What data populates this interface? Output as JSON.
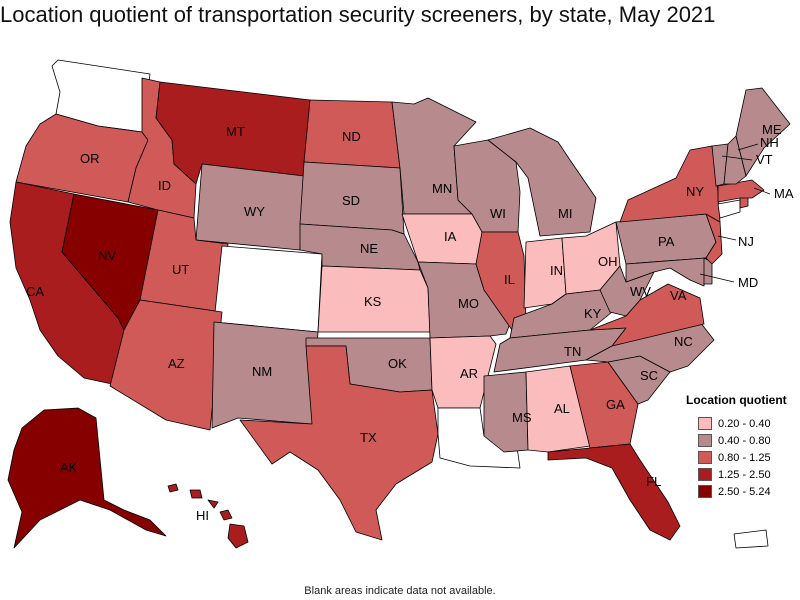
{
  "title": "Location quotient of transportation security screeners, by state, May 2021",
  "legend": {
    "title": "Location quotient",
    "items": [
      {
        "label": "0.20 - 0.40",
        "color": "#fbbcbd"
      },
      {
        "label": "0.40 - 0.80",
        "color": "#b78b8d"
      },
      {
        "label": "0.80 - 1.25",
        "color": "#cf5a58"
      },
      {
        "label": "1.25 - 2.50",
        "color": "#aa1d1f"
      },
      {
        "label": "2.50 - 5.24",
        "color": "#870000"
      }
    ]
  },
  "footnote": "Blank areas indicate data not available.",
  "states": {
    "WA": {
      "label": "",
      "class": "none"
    },
    "OR": {
      "label": "OR",
      "class": 2
    },
    "CA": {
      "label": "CA",
      "class": 3
    },
    "NV": {
      "label": "NV",
      "class": 4
    },
    "ID": {
      "label": "ID",
      "class": 2
    },
    "MT": {
      "label": "MT",
      "class": 3
    },
    "WY": {
      "label": "WY",
      "class": 1
    },
    "UT": {
      "label": "UT",
      "class": 2
    },
    "CO": {
      "label": "",
      "class": "none"
    },
    "AZ": {
      "label": "AZ",
      "class": 2
    },
    "NM": {
      "label": "NM",
      "class": 1
    },
    "ND": {
      "label": "ND",
      "class": 2
    },
    "SD": {
      "label": "SD",
      "class": 1
    },
    "NE": {
      "label": "NE",
      "class": 1
    },
    "KS": {
      "label": "KS",
      "class": 0
    },
    "OK": {
      "label": "OK",
      "class": 1
    },
    "TX": {
      "label": "TX",
      "class": 2
    },
    "MN": {
      "label": "MN",
      "class": 1
    },
    "IA": {
      "label": "IA",
      "class": 0
    },
    "MO": {
      "label": "MO",
      "class": 1
    },
    "AR": {
      "label": "AR",
      "class": 0
    },
    "LA": {
      "label": "",
      "class": "none"
    },
    "WI": {
      "label": "WI",
      "class": 1
    },
    "IL": {
      "label": "IL",
      "class": 2
    },
    "MI": {
      "label": "MI",
      "class": 1
    },
    "IN": {
      "label": "IN",
      "class": 0
    },
    "OH": {
      "label": "OH",
      "class": 0
    },
    "KY": {
      "label": "KY",
      "class": 1
    },
    "TN": {
      "label": "TN",
      "class": 1
    },
    "MS": {
      "label": "MS",
      "class": 1
    },
    "AL": {
      "label": "AL",
      "class": 0
    },
    "GA": {
      "label": "GA",
      "class": 2
    },
    "FL": {
      "label": "FL",
      "class": 3
    },
    "SC": {
      "label": "SC",
      "class": 1
    },
    "NC": {
      "label": "NC",
      "class": 1
    },
    "VA": {
      "label": "VA",
      "class": 2
    },
    "WV": {
      "label": "WV",
      "class": 1
    },
    "PA": {
      "label": "PA",
      "class": 1
    },
    "NY": {
      "label": "NY",
      "class": 2
    },
    "MD": {
      "label": "MD",
      "class": 1
    },
    "DE": {
      "label": "",
      "class": 1
    },
    "NJ": {
      "label": "NJ",
      "class": 2
    },
    "CT": {
      "label": "",
      "class": "none"
    },
    "RI": {
      "label": "",
      "class": 2
    },
    "MA": {
      "label": "MA",
      "class": 2
    },
    "VT": {
      "label": "VT",
      "class": 1
    },
    "NH": {
      "label": "NH",
      "class": 1
    },
    "ME": {
      "label": "ME",
      "class": 1
    },
    "AK": {
      "label": "AK",
      "class": 4
    },
    "HI": {
      "label": "HI",
      "class": 3
    },
    "PR": {
      "label": "",
      "class": "none"
    }
  }
}
